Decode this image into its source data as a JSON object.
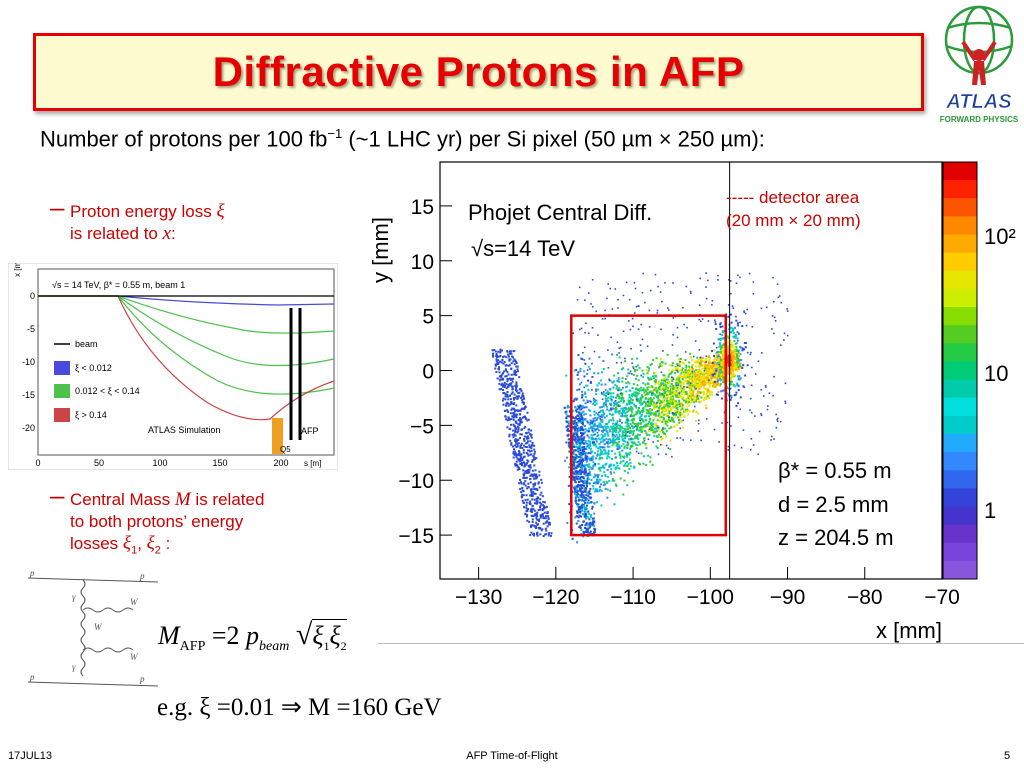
{
  "slide": {
    "title": "Diffractive Protons in AFP",
    "subtitle_prefix": "Number of protons per 100 fb",
    "subtitle_sup": "−1",
    "subtitle_suffix": " (~1 LHC yr) per Si pixel (50 µm × 250 µm):",
    "page_number": "5",
    "footer_date": "17JUL13",
    "footer_center": "AFP Time-of-Flight"
  },
  "logo": {
    "text": "ATLAS",
    "subtext": "FORWARD PHYSICS"
  },
  "bullets": {
    "b1_line1": "Proton energy loss ",
    "b1_sym1": "ξ",
    "b1_line2": "is related to ",
    "b1_sym2": "x",
    "b1_end": ":",
    "b2_line1_a": "Central Mass ",
    "b2_sym": "M",
    "b2_line1_b": " is related",
    "b2_line2": "to both protons’ energy",
    "b2_line3": "losses ",
    "b2_xi1": "ξ",
    "b2_sub1": "1",
    "b2_comma": ", ",
    "b2_xi2": "ξ",
    "b2_sub2": "2",
    "b2_end": " :"
  },
  "formula": {
    "M": "M",
    "sub": "AFP",
    "eq": " =2 ",
    "p": "p",
    "p_sub": "beam",
    "xi": "ξ",
    "one": "1",
    "two": "2"
  },
  "example": {
    "text": "e.g. ξ =0.01  ⇒  M =160 GeV"
  },
  "sim_plot": {
    "title": "√s = 14 TeV, β* = 0.55 m, beam 1",
    "ylabel": "x [mm]",
    "xlabel": "s [m]",
    "credit": "ATLAS Simulation",
    "afp_label": "AFP",
    "q5_label": "Q5",
    "legend": [
      "beam",
      "ξ < 0.012",
      "0.012 < ξ < 0.14",
      "ξ > 0.14"
    ],
    "colors": {
      "beam": "#000000",
      "low": "#4a4adc",
      "mid": "#4cc24c",
      "high": "#cc4444",
      "q5": "#f0a020"
    },
    "xticks": [
      "0",
      "50",
      "100",
      "150",
      "200"
    ],
    "yticks": [
      "0",
      "-5",
      "-10",
      "-15",
      "-20"
    ]
  },
  "feynman": {
    "p": "p",
    "gamma": "γ",
    "W": "W"
  },
  "chart_data": {
    "type": "heatmap",
    "title": "Phojet Central Diff.",
    "subtitle": "√s=14 TeV",
    "xlabel": "x [mm]",
    "ylabel": "y [mm]",
    "xlim": [
      -135,
      -70
    ],
    "ylim": [
      -19,
      19
    ],
    "xticks": [
      -130,
      -120,
      -110,
      -100,
      -90,
      -80,
      -70
    ],
    "yticks": [
      15,
      10,
      5,
      0,
      -5,
      -10,
      -15
    ],
    "colorbar_ticks": [
      "10²",
      "10",
      "1"
    ],
    "params": [
      "β* = 0.55 m",
      "d = 2.5 mm",
      "z = 204.5 m"
    ],
    "detector_legend": [
      "----- detector area",
      "(20 mm × 20 mm)"
    ],
    "detector_area": {
      "x": [
        -118,
        -98
      ],
      "y": [
        -15,
        5
      ]
    },
    "beam_line_x": -97.5,
    "hotspot": {
      "x": -97.7,
      "y": 1
    }
  }
}
